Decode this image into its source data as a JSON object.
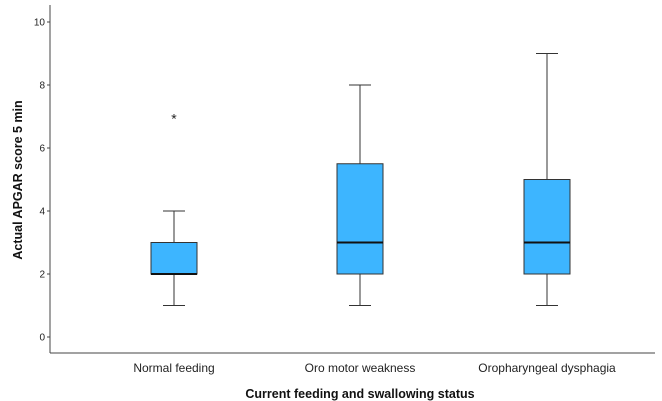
{
  "chart_data": {
    "type": "boxplot",
    "xlabel": "Current feeding and swallowing status",
    "ylabel": "Actual APGAR score 5 min",
    "ylim": [
      0,
      10
    ],
    "yticks": [
      "0",
      "2",
      "4",
      "6",
      "8",
      "10"
    ],
    "grid": false,
    "categories": [
      "Normal feeding",
      "Oro motor weakness",
      "Oropharyngeal dysphagia"
    ],
    "boxes": [
      {
        "min": 1,
        "q1": 2,
        "median": 2,
        "q3": 3,
        "max": 4,
        "outliers": [
          7
        ]
      },
      {
        "min": 1,
        "q1": 2,
        "median": 3,
        "q3": 5.5,
        "max": 8,
        "outliers": []
      },
      {
        "min": 1,
        "q1": 2,
        "median": 3,
        "q3": 5,
        "max": 9,
        "outliers": []
      }
    ],
    "outlier_marker": "*",
    "box_color": "#3db5ff"
  }
}
